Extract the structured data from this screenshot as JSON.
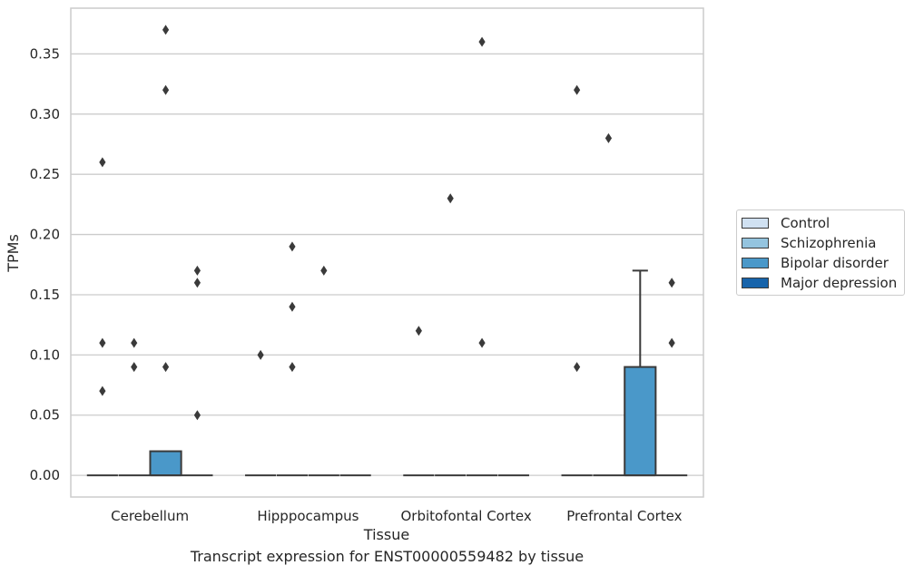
{
  "caption": "Transcript expression for ENST00000559482 by tissue",
  "colors": {
    "Control": "#d0e1f2",
    "Schizophrenia": "#94c4df",
    "Bipolar disorder": "#4a98c9",
    "Major depression": "#1764ab",
    "grid": "#cccccc",
    "outline": "#3a3a3a"
  },
  "chart_data": {
    "type": "box",
    "title": "",
    "xlabel": "Tissue",
    "ylabel": "TPMs",
    "ylim": [
      -0.018,
      0.388
    ],
    "yticks": [
      0.0,
      0.05,
      0.1,
      0.15,
      0.2,
      0.25,
      0.3,
      0.35
    ],
    "ytick_labels": [
      "0.00",
      "0.05",
      "0.10",
      "0.15",
      "0.20",
      "0.25",
      "0.30",
      "0.35"
    ],
    "grid": true,
    "legend_position": "right",
    "categories": [
      "Cerebellum",
      "Hipppocampus",
      "Orbitofontal Cortex",
      "Prefrontal Cortex"
    ],
    "series": [
      {
        "name": "Control",
        "boxes": [
          {
            "q1": 0,
            "median": 0,
            "q3": 0,
            "whisker_low": 0,
            "whisker_high": 0,
            "outliers": [
              0.07,
              0.11,
              0.26
            ]
          },
          {
            "q1": 0,
            "median": 0,
            "q3": 0,
            "whisker_low": 0,
            "whisker_high": 0,
            "outliers": [
              0.1
            ]
          },
          {
            "q1": 0,
            "median": 0,
            "q3": 0,
            "whisker_low": 0,
            "whisker_high": 0,
            "outliers": [
              0.12
            ]
          },
          {
            "q1": 0,
            "median": 0,
            "q3": 0,
            "whisker_low": 0,
            "whisker_high": 0,
            "outliers": [
              0.09,
              0.32
            ]
          }
        ]
      },
      {
        "name": "Schizophrenia",
        "boxes": [
          {
            "q1": 0,
            "median": 0,
            "q3": 0,
            "whisker_low": 0,
            "whisker_high": 0,
            "outliers": [
              0.09,
              0.11
            ]
          },
          {
            "q1": 0,
            "median": 0,
            "q3": 0,
            "whisker_low": 0,
            "whisker_high": 0,
            "outliers": [
              0.09,
              0.14,
              0.19
            ]
          },
          {
            "q1": 0,
            "median": 0,
            "q3": 0,
            "whisker_low": 0,
            "whisker_high": 0,
            "outliers": [
              0.23
            ]
          },
          {
            "q1": 0,
            "median": 0,
            "q3": 0,
            "whisker_low": 0,
            "whisker_high": 0,
            "outliers": [
              0.28
            ]
          }
        ]
      },
      {
        "name": "Bipolar disorder",
        "boxes": [
          {
            "q1": 0,
            "median": 0,
            "q3": 0.02,
            "whisker_low": 0,
            "whisker_high": 0.02,
            "outliers": [
              0.09,
              0.32,
              0.37
            ]
          },
          {
            "q1": 0,
            "median": 0,
            "q3": 0,
            "whisker_low": 0,
            "whisker_high": 0,
            "outliers": [
              0.17
            ]
          },
          {
            "q1": 0,
            "median": 0,
            "q3": 0,
            "whisker_low": 0,
            "whisker_high": 0,
            "outliers": [
              0.11,
              0.36
            ]
          },
          {
            "q1": 0,
            "median": 0,
            "q3": 0.09,
            "whisker_low": 0,
            "whisker_high": 0.17,
            "outliers": []
          }
        ]
      },
      {
        "name": "Major depression",
        "boxes": [
          {
            "q1": 0,
            "median": 0,
            "q3": 0,
            "whisker_low": 0,
            "whisker_high": 0,
            "outliers": [
              0.05,
              0.16,
              0.17
            ]
          },
          {
            "q1": 0,
            "median": 0,
            "q3": 0,
            "whisker_low": 0,
            "whisker_high": 0,
            "outliers": []
          },
          {
            "q1": 0,
            "median": 0,
            "q3": 0,
            "whisker_low": 0,
            "whisker_high": 0,
            "outliers": []
          },
          {
            "q1": 0,
            "median": 0,
            "q3": 0,
            "whisker_low": 0,
            "whisker_high": 0,
            "outliers": [
              0.11,
              0.16
            ]
          }
        ]
      }
    ]
  }
}
